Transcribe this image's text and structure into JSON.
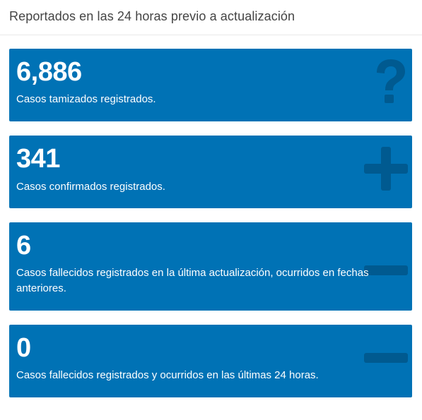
{
  "header": {
    "title": "Reportados en las 24 horas previo a actualización"
  },
  "cards": [
    {
      "number": "6,886",
      "description": "Casos tamizados registrados.",
      "icon": "question-icon"
    },
    {
      "number": "341",
      "description": "Casos confirmados registrados.",
      "icon": "plus-icon"
    },
    {
      "number": "6",
      "description": "Casos fallecidos registrados en la última actualización, ocurridos en fechas anteriores.",
      "icon": "minus-icon"
    },
    {
      "number": "0",
      "description": "Casos fallecidos registrados y ocurridos en las últimas 24 horas.",
      "icon": "minus-icon"
    }
  ],
  "colors": {
    "card_background": "#0072b5",
    "icon_shade": "#005a90",
    "header_text": "#444444"
  }
}
